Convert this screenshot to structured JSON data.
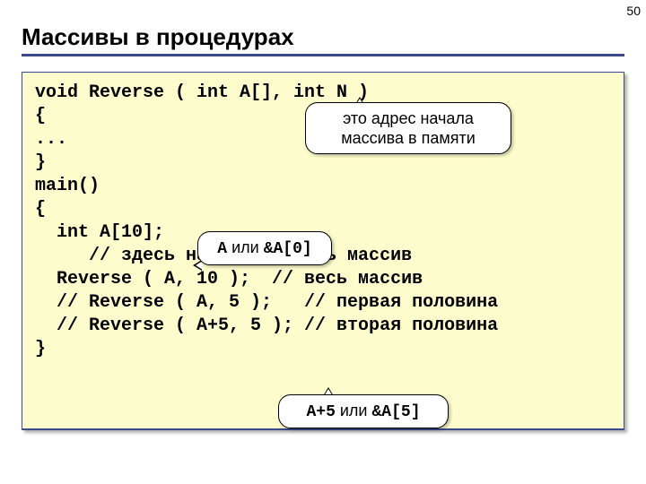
{
  "page_number": "50",
  "title": "Массивы в процедурах",
  "colors": {
    "underline": "#3a4a8a",
    "panel_bg": "#fdfccc",
    "panel_border": "#3a4a8a",
    "callout_bg": "#ffffff",
    "callout_border": "#000000"
  },
  "code": {
    "l1": "void Reverse ( int A[], int N )",
    "l2": "{",
    "l3": "...",
    "l4": "}",
    "l5": "main()",
    "l6": "{",
    "l7": "  int A[10];",
    "l8": "     // здесь надо заполнить массив",
    "l9": "  Reverse ( A, 10 );  // весь массив",
    "l10": "  // Reverse ( A, 5 );   // первая половина",
    "l11": "  // Reverse ( A+5, 5 ); // вторая половина",
    "l12": "}"
  },
  "callouts": {
    "c1_line1": "это адрес начала",
    "c1_line2": "массива в памяти",
    "c2_mono1": "A",
    "c2_text": " или ",
    "c2_mono2": "&A[0]",
    "c3_mono1": "A+5",
    "c3_text": " или ",
    "c3_mono2": "&A[5]"
  }
}
